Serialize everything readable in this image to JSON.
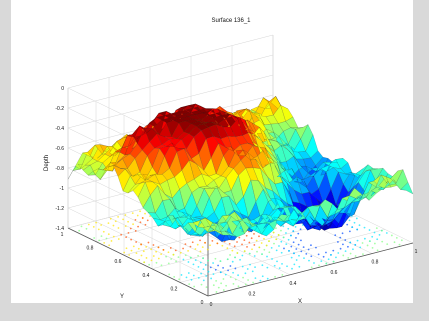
{
  "chart_data": {
    "type": "surface3d",
    "title": "Surface 136_1",
    "xlabel": "X",
    "ylabel": "Y",
    "zlabel": "Depth",
    "xlim": [
      0,
      1
    ],
    "ylim": [
      0,
      1
    ],
    "zlim": [
      -1.4,
      0
    ],
    "x_ticks": [
      "0",
      "0.2",
      "0.4",
      "0.6",
      "0.8",
      "1"
    ],
    "y_ticks": [
      "0",
      "0.2",
      "0.4",
      "0.6",
      "0.8",
      "1"
    ],
    "z_ticks": [
      "0",
      "-0.2",
      "-0.4",
      "-0.6",
      "-0.8",
      "-1",
      "-1.2",
      "-1.4"
    ],
    "grid": true,
    "colormap": "jet",
    "contour_projection_on_floor": true,
    "surface_depth_range": [
      -1.3,
      -0.3
    ]
  }
}
